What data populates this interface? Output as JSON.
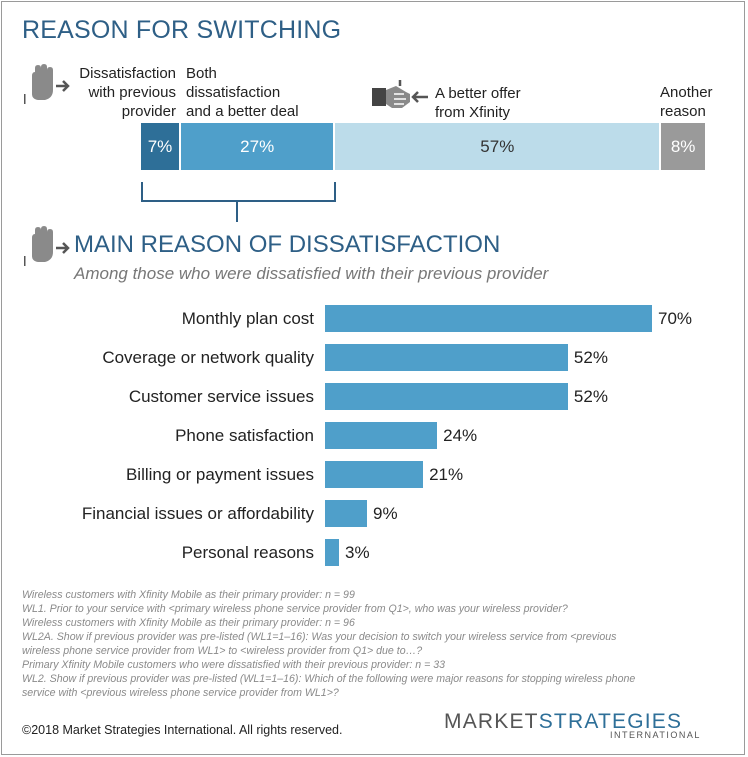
{
  "section1": {
    "title": "REASON FOR SWITCHING",
    "labels": {
      "dissatisfaction": "Dissatisfaction\nwith previous\nprovider",
      "both": "Both\ndissatisfaction\nand a better deal",
      "better_offer": "A better offer\nfrom Xfinity",
      "another": "Another\nreason"
    }
  },
  "section2": {
    "title": "MAIN REASON OF DISSATISFACTION",
    "subtitle": "Among those who were dissatisfied with their previous provider"
  },
  "chart_data": [
    {
      "type": "bar",
      "orientation": "horizontal-stacked",
      "categories": [
        "Dissatisfaction with previous provider",
        "Both dissatisfaction and a better deal",
        "A better offer from Xfinity",
        "Another reason"
      ],
      "values": [
        7,
        27,
        57,
        8
      ],
      "value_labels": [
        "7%",
        "27%",
        "57%",
        "8%"
      ],
      "colors": [
        "#2e6f98",
        "#4f9fca",
        "#bcdcea",
        "#9a9a9a"
      ],
      "label_colors": [
        "#ffffff",
        "#ffffff",
        "#333333",
        "#ffffff"
      ],
      "title": "REASON FOR SWITCHING"
    },
    {
      "type": "bar",
      "orientation": "horizontal",
      "categories": [
        "Monthly plan cost",
        "Coverage or network quality",
        "Customer service issues",
        "Phone satisfaction",
        "Billing or payment issues",
        "Financial issues or affordability",
        "Personal reasons"
      ],
      "values": [
        70,
        52,
        52,
        24,
        21,
        9,
        3
      ],
      "value_labels": [
        "70%",
        "52%",
        "52%",
        "24%",
        "21%",
        "9%",
        "3%"
      ],
      "color": "#4f9fca",
      "title": "MAIN REASON OF DISSATISFACTION",
      "subtitle": "Among those who were dissatisfied with their previous provider",
      "xlim": [
        0,
        70
      ]
    }
  ],
  "notes": [
    "Wireless customers with Xfinity Mobile as their primary provider: n = 99",
    "WL1. Prior to your service with <primary wireless phone service provider from Q1>, who was your wireless provider?",
    "Wireless customers with Xfinity Mobile as their primary provider: n = 96",
    "WL2A. Show if previous provider was pre-listed (WL1=1–16): Was your decision to switch your wireless service from <previous\nwireless phone service provider from WL1> to <wireless provider from Q1> due to…?",
    "Primary Xfinity Mobile customers who were dissatisfied with their previous provider: n = 33",
    "WL2. Show if previous provider was pre-listed (WL1=1–16): Which of the following were major reasons for stopping wireless phone\nservice with <previous wireless phone service provider from WL1>?"
  ],
  "footer": {
    "copyright": "©2018 Market Strategies International. All rights reserved.",
    "logo_part1": "MARKET",
    "logo_part2": "STRATEGIES",
    "logo_sub": "INTERNATIONAL",
    "logo_color1": "#555555",
    "logo_color2": "#2e6f98"
  },
  "icons": {
    "stop_hand": "stop-hand-arrow-icon",
    "handshake": "handshake-arrow-icon"
  }
}
